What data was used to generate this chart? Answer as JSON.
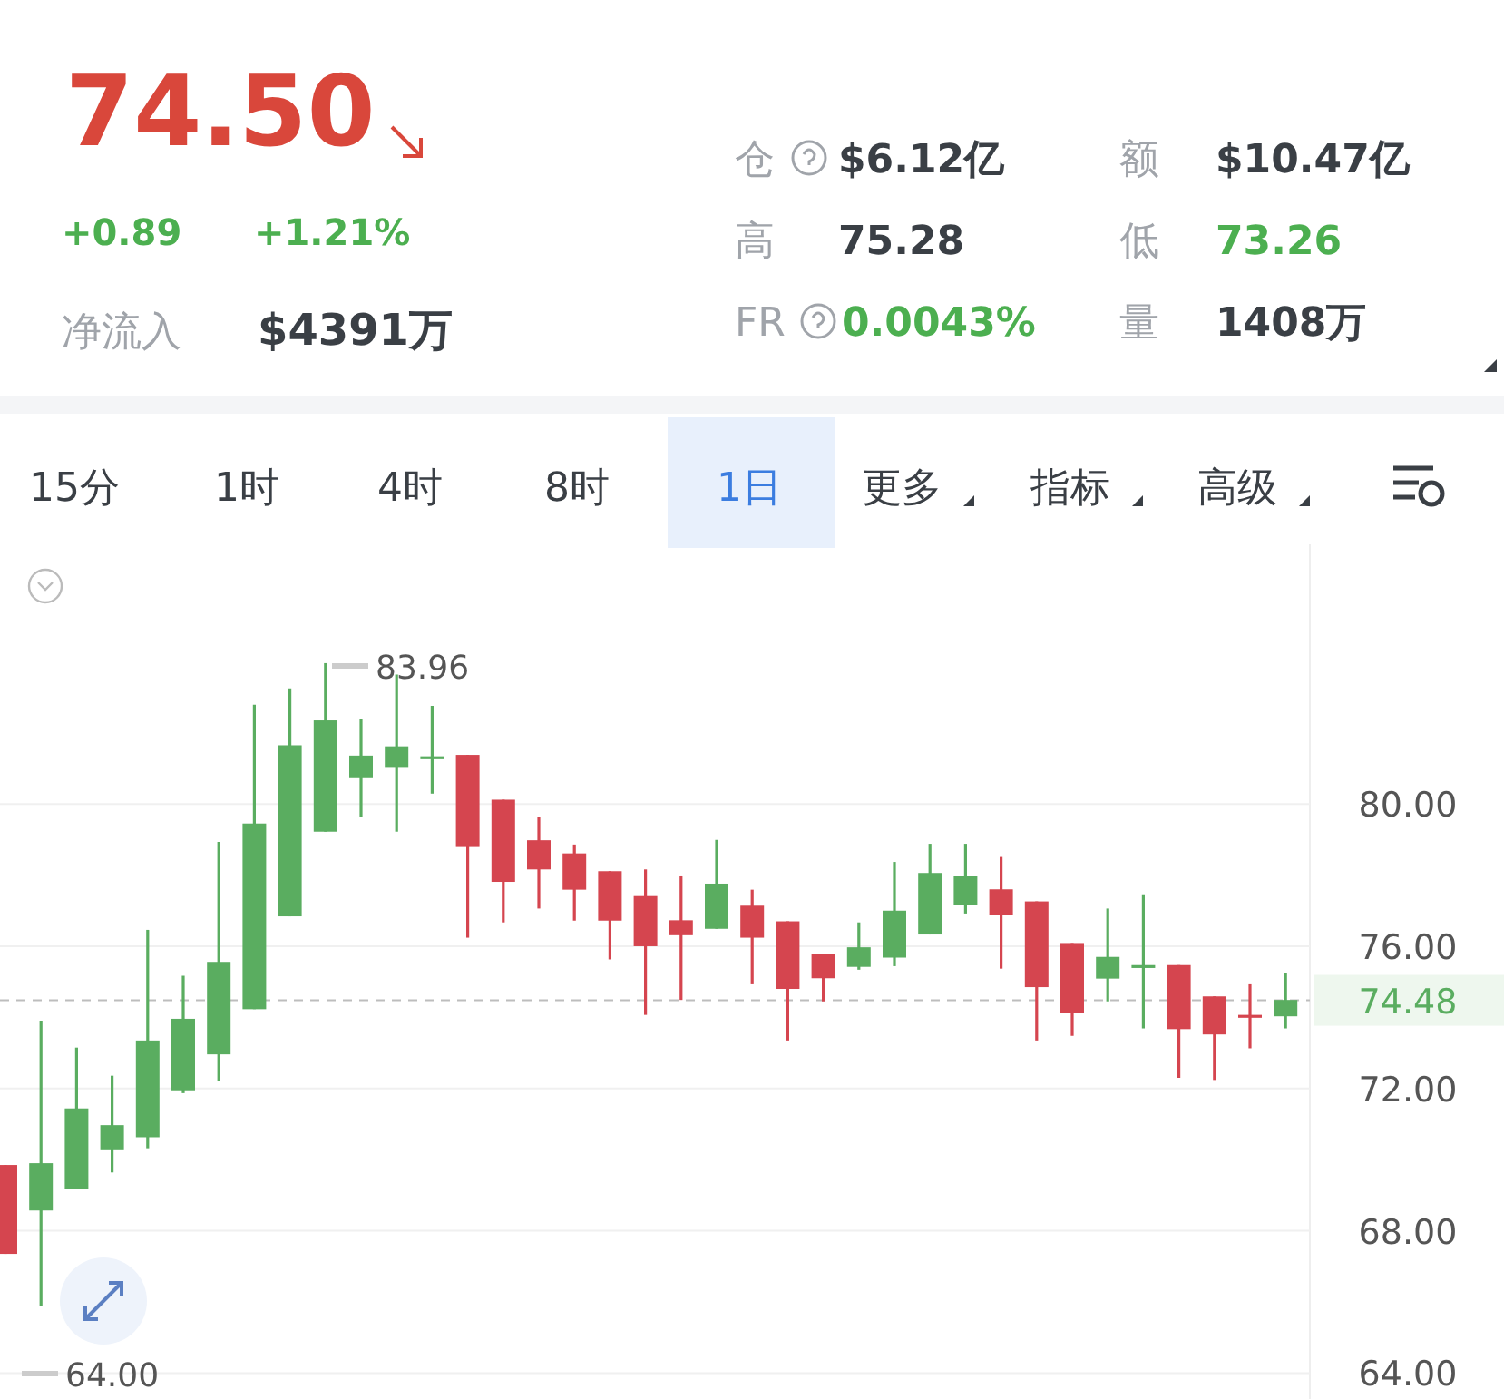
{
  "chart_data": [
    {
      "type": "other",
      "annotations": [
        "74.50",
        "+0.89",
        "+1.21%",
        "净流入",
        "$4391万",
        "仓",
        "$6.12亿",
        "额",
        "$10.47亿",
        "高",
        "75.28",
        "低",
        "73.26",
        "FR",
        "0.0043%",
        "量",
        "1408万",
        "15分",
        "1时",
        "4时",
        "8时",
        "1日",
        "更多",
        "指标",
        "高级"
      ]
    },
    {
      "type": "candlestick",
      "categories": [
        null,
        null,
        null,
        null,
        null,
        null,
        null,
        null,
        null,
        null,
        null,
        null,
        null,
        null,
        null,
        null,
        null,
        null,
        null,
        null,
        null,
        null,
        null,
        null,
        null,
        null,
        null,
        null,
        null,
        null,
        null,
        null,
        null,
        null,
        null,
        null,
        null
      ],
      "ohlc": [
        [
          69.85,
          69.85,
          67.35,
          67.35
        ],
        [
          68.57,
          73.91,
          65.87,
          69.9
        ],
        [
          69.18,
          73.15,
          69.18,
          71.44
        ],
        [
          70.29,
          72.36,
          69.64,
          70.97
        ],
        [
          70.63,
          76.46,
          70.32,
          73.35
        ],
        [
          71.95,
          75.17,
          71.87,
          73.96
        ],
        [
          72.96,
          78.93,
          72.21,
          75.56
        ],
        [
          74.23,
          82.79,
          74.23,
          79.45
        ],
        [
          76.84,
          83.25,
          76.84,
          81.65
        ],
        [
          79.22,
          83.96,
          79.22,
          82.35
        ],
        [
          80.75,
          82.4,
          79.64,
          81.36
        ],
        [
          81.04,
          83.64,
          79.22,
          81.62
        ],
        [
          81.34,
          82.76,
          80.29,
          81.34
        ],
        [
          81.38,
          81.38,
          76.24,
          78.79
        ],
        [
          80.12,
          80.12,
          76.67,
          77.81
        ],
        [
          78.98,
          79.64,
          77.06,
          78.16
        ],
        [
          78.61,
          78.86,
          76.72,
          77.59
        ],
        [
          78.11,
          78.11,
          75.63,
          76.72
        ],
        [
          77.41,
          78.16,
          74.07,
          76.0
        ],
        [
          76.73,
          77.99,
          74.49,
          76.31
        ],
        [
          76.49,
          78.99,
          76.49,
          77.76
        ],
        [
          77.14,
          77.59,
          74.93,
          76.24
        ],
        [
          76.7,
          76.7,
          73.35,
          74.8
        ],
        [
          75.78,
          75.78,
          74.45,
          75.1
        ],
        [
          75.42,
          76.67,
          75.34,
          75.97
        ],
        [
          75.68,
          78.37,
          75.44,
          77.0
        ],
        [
          76.33,
          78.88,
          76.33,
          78.06
        ],
        [
          77.16,
          78.88,
          76.92,
          77.97
        ],
        [
          77.6,
          78.51,
          75.37,
          76.89
        ],
        [
          77.26,
          77.26,
          73.35,
          74.85
        ],
        [
          76.09,
          76.09,
          73.48,
          74.12
        ],
        [
          75.09,
          77.06,
          74.45,
          75.7
        ],
        [
          75.47,
          77.46,
          73.69,
          75.47
        ],
        [
          75.47,
          75.47,
          72.3,
          73.67
        ],
        [
          74.59,
          74.59,
          72.24,
          73.52
        ],
        [
          74.07,
          74.93,
          73.13,
          74.07
        ],
        [
          74.03,
          75.26,
          73.69,
          74.49
        ]
      ],
      "colors": [
        "#d5454f",
        "#5aad60",
        "#5aad60",
        "#5aad60",
        "#5aad60",
        "#5aad60",
        "#5aad60",
        "#5aad60",
        "#5aad60",
        "#5aad60",
        "#5aad60",
        "#5aad60",
        "#5aad60",
        "#d5454f",
        "#d5454f",
        "#d5454f",
        "#d5454f",
        "#d5454f",
        "#d5454f",
        "#d5454f",
        "#5aad60",
        "#d5454f",
        "#d5454f",
        "#d5454f",
        "#5aad60",
        "#5aad60",
        "#5aad60",
        "#5aad60",
        "#d5454f",
        "#d5454f",
        "#d5454f",
        "#5aad60",
        "#5aad60",
        "#d5454f",
        "#d5454f",
        "#d5454f",
        "#5aad60"
      ],
      "ylim": [
        63.27,
        87.3
      ],
      "yticks": [
        {
          "value": 64,
          "label": "64.00"
        },
        {
          "value": 68,
          "label": "68.00"
        },
        {
          "value": 72,
          "label": "72.00"
        },
        {
          "value": 76,
          "label": "76.00"
        },
        {
          "value": 80,
          "label": "80.00"
        }
      ],
      "grid": "y",
      "tick_labels": "y",
      "ref_lines": [
        {
          "axis": "y",
          "value": 74.48,
          "label": "74.48",
          "color": "#bdbdbd",
          "line_style": "dashed"
        }
      ],
      "annotations": [
        "83.96",
        "64.00"
      ]
    }
  ]
}
